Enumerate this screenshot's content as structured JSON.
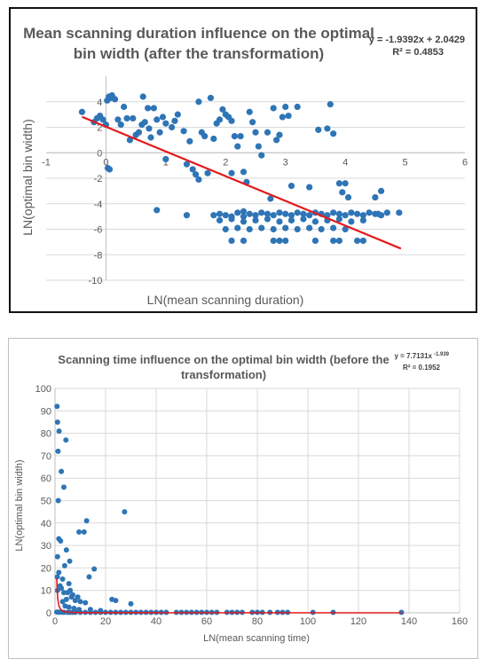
{
  "chart_data": [
    {
      "type": "scatter",
      "title": "Mean scanning duration influence on the optimal bin width (after the transformation)",
      "title_lines": [
        "Mean scanning duration influence on the optimal",
        "bin width (after the transformation)"
      ],
      "equation": "y = -1.9392x + 2.0429",
      "r_squared": "R² = 0.4853",
      "xlabel": "LN(mean scanning duration)",
      "ylabel": "LN(optimal bin width)",
      "xlim": [
        -1,
        6
      ],
      "ylim": [
        -10,
        6
      ],
      "x_ticks": [
        "-1",
        "0",
        "1",
        "2",
        "3",
        "4",
        "5",
        "6"
      ],
      "y_ticks": [
        "-10",
        "-8",
        "-6",
        "-4",
        "-2",
        "0",
        "2",
        "4"
      ],
      "grid": true,
      "point_color": "#2e75b6",
      "trendline_color": "#e31a1c",
      "trendline": {
        "slope": -1.9392,
        "intercept": 2.0429,
        "x_range": [
          -0.4,
          4.93
        ]
      },
      "points": [
        [
          -0.4,
          3.2
        ],
        [
          -0.2,
          2.4
        ],
        [
          -0.15,
          2.7
        ],
        [
          -0.1,
          2.9
        ],
        [
          -0.05,
          2.6
        ],
        [
          0.0,
          2.2
        ],
        [
          0.02,
          4.1
        ],
        [
          0.05,
          4.4
        ],
        [
          0.08,
          4.3
        ],
        [
          0.1,
          4.5
        ],
        [
          0.15,
          4.2
        ],
        [
          0.03,
          -1.2
        ],
        [
          0.06,
          -1.3
        ],
        [
          0.2,
          2.6
        ],
        [
          0.25,
          2.2
        ],
        [
          0.3,
          3.6
        ],
        [
          0.35,
          2.7
        ],
        [
          0.4,
          1.0
        ],
        [
          0.45,
          2.7
        ],
        [
          0.5,
          1.4
        ],
        [
          0.55,
          1.6
        ],
        [
          0.6,
          2.2
        ],
        [
          0.62,
          4.4
        ],
        [
          0.65,
          2.4
        ],
        [
          0.7,
          3.5
        ],
        [
          0.72,
          1.9
        ],
        [
          0.75,
          1.2
        ],
        [
          0.8,
          3.5
        ],
        [
          0.85,
          2.6
        ],
        [
          0.9,
          1.6
        ],
        [
          0.95,
          2.8
        ],
        [
          1.0,
          2.3
        ],
        [
          1.0,
          -0.5
        ],
        [
          0.85,
          -4.5
        ],
        [
          1.1,
          2.0
        ],
        [
          1.15,
          2.5
        ],
        [
          1.2,
          3.0
        ],
        [
          1.3,
          1.7
        ],
        [
          1.35,
          -0.9
        ],
        [
          1.4,
          0.9
        ],
        [
          1.45,
          -1.3
        ],
        [
          1.5,
          -1.7
        ],
        [
          1.55,
          -2.1
        ],
        [
          1.35,
          -4.9
        ],
        [
          1.55,
          4.0
        ],
        [
          1.6,
          1.6
        ],
        [
          1.65,
          1.3
        ],
        [
          1.7,
          -1.6
        ],
        [
          1.75,
          4.3
        ],
        [
          1.8,
          1.1
        ],
        [
          1.85,
          2.3
        ],
        [
          1.9,
          2.6
        ],
        [
          1.95,
          3.4
        ],
        [
          2.0,
          3.0
        ],
        [
          2.05,
          2.8
        ],
        [
          2.1,
          2.5
        ],
        [
          2.15,
          1.3
        ],
        [
          2.2,
          0.5
        ],
        [
          2.25,
          1.3
        ],
        [
          2.1,
          -1.6
        ],
        [
          2.3,
          -1.5
        ],
        [
          2.35,
          -2.3
        ],
        [
          2.4,
          3.2
        ],
        [
          2.45,
          2.4
        ],
        [
          2.5,
          1.6
        ],
        [
          2.55,
          0.5
        ],
        [
          2.3,
          -4.6
        ],
        [
          2.6,
          -0.2
        ],
        [
          2.7,
          1.6
        ],
        [
          2.75,
          -3.6
        ],
        [
          2.8,
          3.5
        ],
        [
          2.85,
          1.0
        ],
        [
          2.9,
          1.4
        ],
        [
          2.95,
          2.8
        ],
        [
          3.0,
          3.6
        ],
        [
          3.05,
          2.9
        ],
        [
          3.1,
          -2.6
        ],
        [
          3.2,
          3.6
        ],
        [
          3.4,
          -2.7
        ],
        [
          3.55,
          1.8
        ],
        [
          3.7,
          1.9
        ],
        [
          3.75,
          3.8
        ],
        [
          3.8,
          1.5
        ],
        [
          3.9,
          -2.4
        ],
        [
          3.95,
          -3.1
        ],
        [
          4.0,
          -2.4
        ],
        [
          4.05,
          -3.5
        ],
        [
          4.5,
          -3.5
        ],
        [
          4.55,
          -4.8
        ],
        [
          4.6,
          -3.0
        ],
        [
          4.9,
          -4.7
        ],
        [
          1.8,
          -4.9
        ],
        [
          1.9,
          -4.8
        ],
        [
          2.0,
          -4.9
        ],
        [
          2.1,
          -5.0
        ],
        [
          2.2,
          -4.7
        ],
        [
          2.3,
          -5.0
        ],
        [
          2.4,
          -4.8
        ],
        [
          2.5,
          -4.9
        ],
        [
          2.6,
          -4.7
        ],
        [
          2.7,
          -4.8
        ],
        [
          2.8,
          -4.9
        ],
        [
          2.9,
          -4.7
        ],
        [
          3.0,
          -4.8
        ],
        [
          3.1,
          -4.9
        ],
        [
          3.2,
          -4.7
        ],
        [
          3.3,
          -4.8
        ],
        [
          3.4,
          -4.9
        ],
        [
          3.5,
          -4.7
        ],
        [
          3.6,
          -4.8
        ],
        [
          3.7,
          -4.9
        ],
        [
          3.8,
          -4.7
        ],
        [
          3.9,
          -4.8
        ],
        [
          4.0,
          -4.9
        ],
        [
          4.1,
          -4.7
        ],
        [
          4.2,
          -4.8
        ],
        [
          4.3,
          -4.9
        ],
        [
          4.4,
          -4.7
        ],
        [
          4.5,
          -4.8
        ],
        [
          4.6,
          -4.9
        ],
        [
          4.7,
          -4.7
        ],
        [
          1.9,
          -5.3
        ],
        [
          2.1,
          -5.2
        ],
        [
          2.3,
          -5.4
        ],
        [
          2.5,
          -5.3
        ],
        [
          2.7,
          -5.2
        ],
        [
          2.9,
          -5.4
        ],
        [
          3.1,
          -5.3
        ],
        [
          3.3,
          -5.2
        ],
        [
          3.5,
          -5.4
        ],
        [
          3.7,
          -5.3
        ],
        [
          3.9,
          -5.2
        ],
        [
          4.1,
          -5.4
        ],
        [
          4.3,
          -5.3
        ],
        [
          2.0,
          -6.0
        ],
        [
          2.2,
          -5.9
        ],
        [
          2.4,
          -6.0
        ],
        [
          2.6,
          -5.9
        ],
        [
          2.8,
          -6.0
        ],
        [
          3.0,
          -5.9
        ],
        [
          3.2,
          -6.0
        ],
        [
          3.4,
          -5.9
        ],
        [
          3.6,
          -6.0
        ],
        [
          3.8,
          -5.9
        ],
        [
          4.0,
          -6.0
        ],
        [
          2.1,
          -6.9
        ],
        [
          2.3,
          -6.9
        ],
        [
          2.8,
          -6.9
        ],
        [
          2.9,
          -6.9
        ],
        [
          3.0,
          -6.9
        ],
        [
          3.5,
          -6.9
        ],
        [
          3.8,
          -6.9
        ],
        [
          3.9,
          -6.9
        ],
        [
          4.2,
          -6.9
        ],
        [
          4.3,
          -6.9
        ]
      ]
    },
    {
      "type": "scatter",
      "title": "Scanning time influence on the optimal bin width (before the transformation)",
      "title_lines": [
        "Scanning time influence on the optimal bin width (before the",
        "transformation)"
      ],
      "equation": "y = 7.7131x",
      "equation_exponent": "-1.939",
      "r_squared": "R² = 0.1952",
      "xlabel": "LN(mean scanning time)",
      "ylabel": "LN(optimal bin width)",
      "xlim": [
        0,
        160
      ],
      "ylim": [
        0,
        100
      ],
      "x_ticks": [
        "0",
        "20",
        "40",
        "60",
        "80",
        "100",
        "120",
        "140",
        "160"
      ],
      "y_ticks": [
        "0",
        "10",
        "20",
        "30",
        "40",
        "50",
        "60",
        "70",
        "80",
        "90",
        "100"
      ],
      "grid": true,
      "point_color": "#2e75b6",
      "trendline_color": "#e31a1c",
      "trendline": {
        "type": "power",
        "coefficient": 7.7131,
        "exponent": -1.939,
        "x_range": [
          0.7,
          137
        ]
      },
      "points": [
        [
          0.8,
          92
        ],
        [
          1.0,
          85
        ],
        [
          1.6,
          81
        ],
        [
          1.2,
          72
        ],
        [
          4.3,
          77
        ],
        [
          2.5,
          63
        ],
        [
          3.5,
          56
        ],
        [
          1.3,
          50
        ],
        [
          1.5,
          33
        ],
        [
          2.2,
          32
        ],
        [
          1.0,
          25
        ],
        [
          27.5,
          45
        ],
        [
          12.5,
          41
        ],
        [
          9.5,
          36
        ],
        [
          11.5,
          36
        ],
        [
          4.5,
          28
        ],
        [
          5.8,
          23
        ],
        [
          3.8,
          21
        ],
        [
          15.5,
          19.5
        ],
        [
          13.5,
          16
        ],
        [
          3.0,
          15
        ],
        [
          5.5,
          13
        ],
        [
          2.0,
          12
        ],
        [
          1.0,
          10
        ],
        [
          6.0,
          10
        ],
        [
          5.0,
          9
        ],
        [
          7.0,
          8
        ],
        [
          9.0,
          7
        ],
        [
          4.5,
          6
        ],
        [
          22.5,
          6
        ],
        [
          24.0,
          5.5
        ],
        [
          30.0,
          4
        ],
        [
          1.5,
          18
        ],
        [
          0.9,
          16
        ],
        [
          2.5,
          11
        ],
        [
          3.5,
          9
        ],
        [
          6.5,
          7
        ],
        [
          8.0,
          5.5
        ],
        [
          10.0,
          5
        ],
        [
          12.0,
          4.5
        ],
        [
          3.0,
          5
        ],
        [
          4.0,
          3
        ],
        [
          5.5,
          2.5
        ],
        [
          7.5,
          2
        ],
        [
          9.5,
          1.5
        ],
        [
          14.0,
          1.5
        ],
        [
          18.0,
          1
        ],
        [
          0.7,
          0.3
        ],
        [
          1.5,
          0.3
        ],
        [
          2.5,
          0.3
        ],
        [
          3.5,
          0.2
        ],
        [
          5,
          0.2
        ],
        [
          6,
          0.2
        ],
        [
          7,
          0.2
        ],
        [
          8,
          0.2
        ],
        [
          10,
          0.2
        ],
        [
          12,
          0.2
        ],
        [
          14,
          0.2
        ],
        [
          16,
          0.2
        ],
        [
          18,
          0.2
        ],
        [
          20,
          0.2
        ],
        [
          22,
          0.2
        ],
        [
          24,
          0.2
        ],
        [
          26,
          0.2
        ],
        [
          28,
          0.2
        ],
        [
          30,
          0.2
        ],
        [
          32,
          0.2
        ],
        [
          34,
          0.2
        ],
        [
          36,
          0.2
        ],
        [
          38,
          0.2
        ],
        [
          40,
          0.2
        ],
        [
          42,
          0.2
        ],
        [
          44,
          0.2
        ],
        [
          48,
          0.2
        ],
        [
          50,
          0.2
        ],
        [
          52,
          0.2
        ],
        [
          54,
          0.2
        ],
        [
          56,
          0.2
        ],
        [
          58,
          0.2
        ],
        [
          60,
          0.2
        ],
        [
          62,
          0.2
        ],
        [
          64,
          0.2
        ],
        [
          68,
          0.2
        ],
        [
          70,
          0.2
        ],
        [
          72,
          0.2
        ],
        [
          74,
          0.2
        ],
        [
          78,
          0.2
        ],
        [
          80,
          0.2
        ],
        [
          82,
          0.2
        ],
        [
          85,
          0.2
        ],
        [
          88,
          0.2
        ],
        [
          90,
          0.2
        ],
        [
          92,
          0.2
        ],
        [
          102,
          0.2
        ],
        [
          110,
          0.2
        ],
        [
          137,
          0.2
        ]
      ]
    }
  ]
}
